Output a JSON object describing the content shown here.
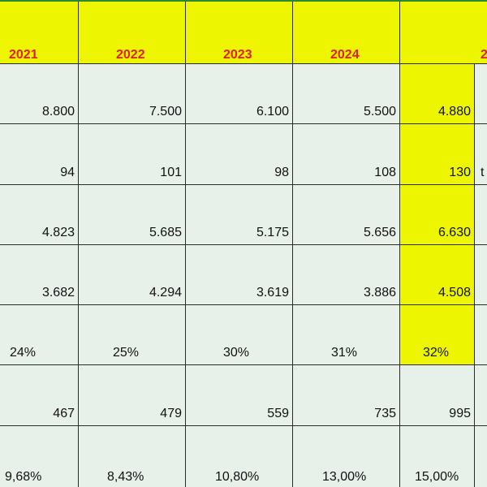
{
  "years": [
    "2021",
    "2022",
    "2023",
    "2024",
    "2"
  ],
  "rows": [
    [
      "8.800",
      "7.500",
      "6.100",
      "5.500",
      "4.880"
    ],
    [
      "94",
      "101",
      "98",
      "108",
      "130"
    ],
    [
      "4.823",
      "5.685",
      "5.175",
      "5.656",
      "6.630"
    ],
    [
      "3.682",
      "4.294",
      "3.619",
      "3.886",
      "4.508"
    ],
    [
      "24%",
      "25%",
      "30%",
      "31%",
      "32%"
    ],
    [
      "467",
      "479",
      "559",
      "735",
      "995"
    ],
    [
      "9,68%",
      "8,43%",
      "10,80%",
      "13,00%",
      "15,00%"
    ]
  ],
  "right_edge_text": "t",
  "colors": {
    "header_fill": "#eef500",
    "header_text": "#e0201e",
    "grid_bg": "#e8f0ea",
    "gridline": "#2b2b2b",
    "frame": "#2a8a2a"
  }
}
